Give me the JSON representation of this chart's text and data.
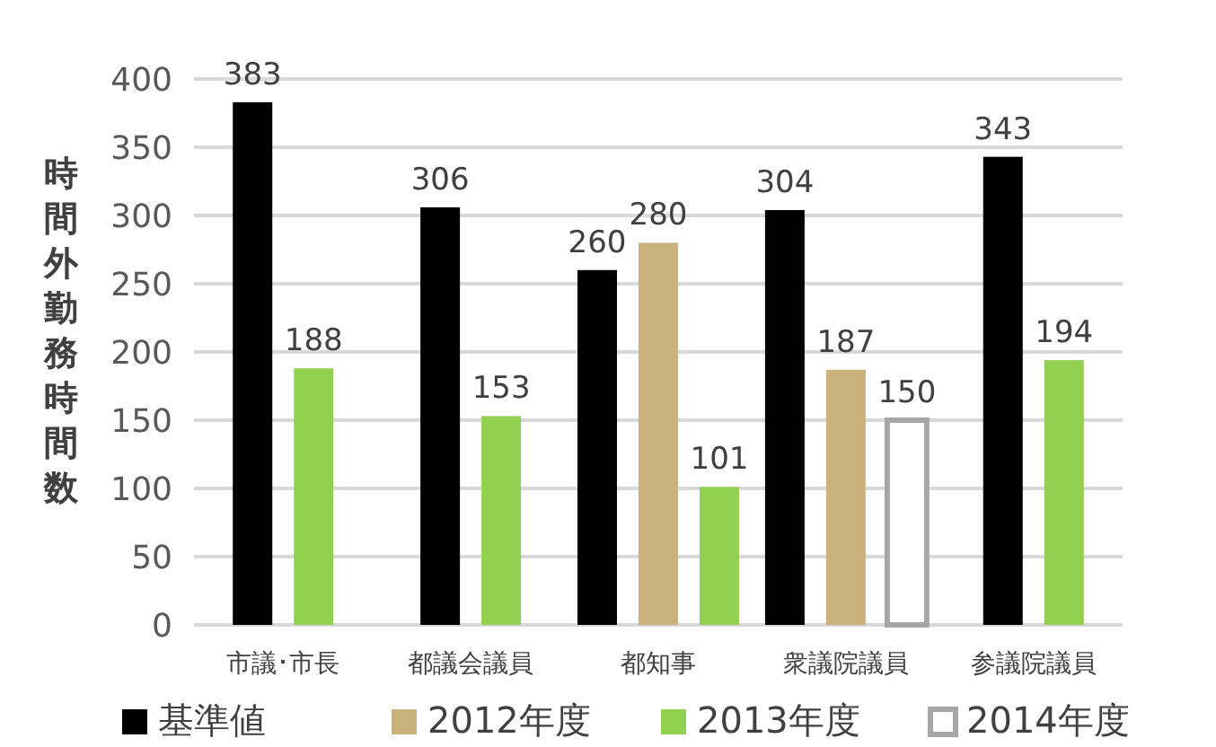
{
  "chart_data": {
    "type": "bar",
    "ylabel": "時間外勤務時間数",
    "categories": [
      "市議･市長",
      "都議会議員",
      "都知事",
      "衆議院議員",
      "参議院議員"
    ],
    "series": [
      {
        "name": "基準値",
        "color": "#000000",
        "values": [
          383,
          306,
          260,
          304,
          343
        ]
      },
      {
        "name": "2012年度",
        "color": "#c9b27c",
        "values": [
          null,
          null,
          280,
          187,
          null
        ]
      },
      {
        "name": "2013年度",
        "color": "#92d050",
        "values": [
          188,
          153,
          101,
          null,
          194
        ]
      },
      {
        "name": "2014年度",
        "color": "#ffffff",
        "values": [
          null,
          null,
          null,
          150,
          null
        ]
      }
    ],
    "ylim": [
      0,
      400
    ],
    "yticks": [
      0,
      50,
      100,
      150,
      200,
      250,
      300,
      350,
      400
    ],
    "grid": "y",
    "legend": "bottom",
    "data_labels": true
  }
}
